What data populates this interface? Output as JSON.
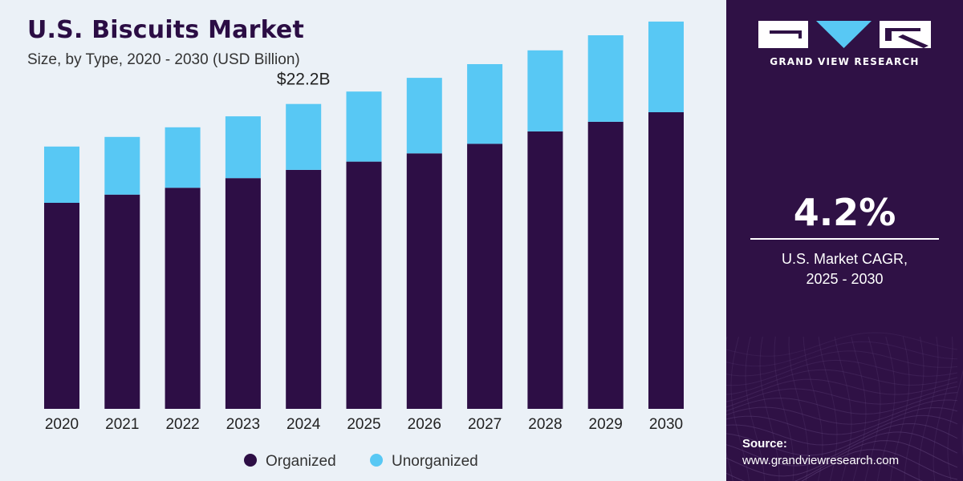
{
  "chart_data": {
    "type": "bar",
    "stacked": true,
    "title": "U.S. Biscuits Market",
    "subtitle": "Size, by Type, 2020 - 2030 (USD Billion)",
    "categories": [
      "2020",
      "2021",
      "2022",
      "2023",
      "2024",
      "2025",
      "2026",
      "2027",
      "2028",
      "2029",
      "2030"
    ],
    "series": [
      {
        "name": "Organized",
        "color": "#2d0e45",
        "values": [
          15.0,
          15.6,
          16.1,
          16.8,
          17.4,
          18.0,
          18.6,
          19.3,
          20.2,
          20.9,
          21.6
        ]
      },
      {
        "name": "Unorganized",
        "color": "#58c8f4",
        "values": [
          4.1,
          4.2,
          4.4,
          4.5,
          4.8,
          5.1,
          5.5,
          5.8,
          5.9,
          6.3,
          6.6
        ]
      }
    ],
    "annotations": [
      {
        "category": "2024",
        "text": "$22.2B"
      }
    ],
    "ylim": [
      0,
      28.6
    ],
    "grid": false,
    "legend": "bottom-center"
  },
  "brand": {
    "name": "GRAND VIEW RESEARCH"
  },
  "cagr": {
    "value": "4.2%",
    "label_line1": "U.S. Market CAGR,",
    "label_line2": "2025 - 2030"
  },
  "source": {
    "label": "Source:",
    "url": "www.grandviewresearch.com"
  }
}
